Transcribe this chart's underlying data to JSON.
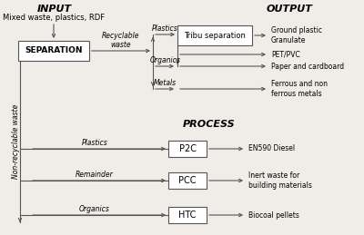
{
  "bg_color": "#f0ede8",
  "box_color": "#ffffff",
  "box_edge_color": "#555555",
  "line_color": "#555555",
  "text_color": "#000000",
  "title_INPUT": "INPUT",
  "title_OUTPUT": "OUTPUT",
  "title_PROCESS": "PROCESS",
  "input_text": "Mixed waste, plastics, RDF",
  "sep_label": "SEPARATION",
  "recyclable_label": "Recyclable\nwaste",
  "non_recyclable_label": "Non-recyclable waste",
  "tribu_label": "Tribu separation",
  "plastics_label1": "Plastics",
  "organics_label1": "Organics",
  "metals_label": "Metals",
  "out1": "Ground plastic\nGranulate",
  "out2": "PET/PVC",
  "out3": "Paper and cardboard",
  "out4": "Ferrous and non\nferrous metals",
  "p2c_label": "P2C",
  "pcc_label": "PCC",
  "htc_label": "HTC",
  "plastics_label2": "Plastics",
  "remainder_label": "Remainder",
  "organics_label2": "Organics",
  "proc_out1": "EN590 Diesel",
  "proc_out2": "Inert waste for\nbuilding materials",
  "proc_out3": "Biocoal pellets"
}
